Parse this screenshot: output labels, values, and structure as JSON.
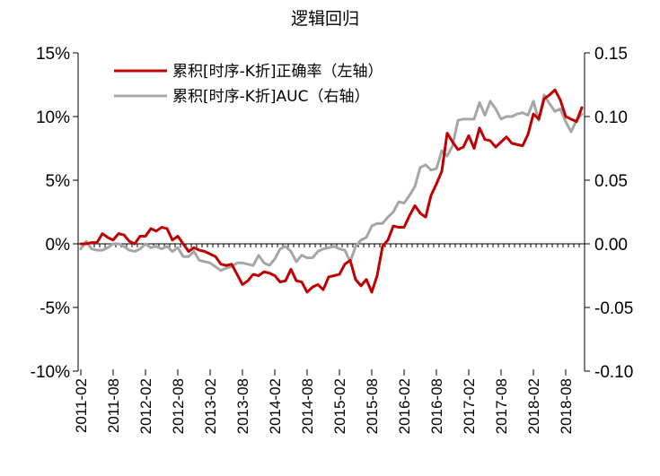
{
  "chart_data": {
    "type": "line",
    "title": "逻辑回归",
    "x_tick_labels": [
      "2011-02",
      "2011-08",
      "2012-02",
      "2012-08",
      "2013-02",
      "2013-08",
      "2014-02",
      "2014-08",
      "2015-02",
      "2015-08",
      "2016-02",
      "2016-08",
      "2017-02",
      "2017-08",
      "2018-02",
      "2018-08"
    ],
    "x_start": "2011-02",
    "x_end": "2018-09",
    "left_axis": {
      "ylim": [
        -10,
        15
      ],
      "ticks": [
        15,
        10,
        5,
        0,
        -5,
        -10
      ],
      "tick_labels": [
        "15%",
        "10%",
        "5%",
        "0%",
        "-5%",
        "-10%"
      ]
    },
    "right_axis": {
      "ylim": [
        -0.1,
        0.15
      ],
      "ticks": [
        0.15,
        0.1,
        0.05,
        0.0,
        -0.05,
        -0.1
      ],
      "tick_labels": [
        "0.15",
        "0.10",
        "0.05",
        "0.00",
        "-0.05",
        "-0.10"
      ]
    },
    "legend_position": "top-left",
    "series": [
      {
        "name": "累积[时序-K折]正确率（左轴）",
        "axis": "left",
        "color": "#c00000",
        "values": [
          0.0,
          0.0,
          0.1,
          0.1,
          0.8,
          0.5,
          0.3,
          0.8,
          0.7,
          0.2,
          0.0,
          0.6,
          0.6,
          1.2,
          1.0,
          1.3,
          1.2,
          0.3,
          0.6,
          0.0,
          -0.6,
          -0.3,
          -0.5,
          -0.6,
          -0.8,
          -1.0,
          -1.6,
          -1.7,
          -1.6,
          -2.4,
          -3.2,
          -2.9,
          -2.4,
          -2.5,
          -2.2,
          -2.3,
          -2.5,
          -3.0,
          -2.9,
          -2.0,
          -2.9,
          -3.0,
          -3.8,
          -3.4,
          -3.2,
          -3.6,
          -2.6,
          -2.5,
          -2.4,
          -1.6,
          -1.3,
          -2.8,
          -3.3,
          -2.8,
          -3.8,
          -2.5,
          -0.2,
          0.3,
          1.4,
          1.3,
          1.3,
          2.2,
          3.0,
          2.4,
          2.1,
          3.8,
          4.7,
          5.7,
          8.7,
          8.0,
          7.4,
          7.6,
          8.5,
          7.5,
          9.1,
          8.2,
          8.1,
          7.6,
          8.0,
          8.4,
          7.9,
          7.8,
          7.7,
          8.6,
          10.2,
          9.8,
          11.4,
          11.7,
          12.1,
          11.3,
          10.0,
          9.8,
          9.6,
          10.7
        ]
      },
      {
        "name": "累积[时序-K折]AUC（右轴）",
        "axis": "right",
        "color": "#a6a6a6",
        "values": [
          -0.004,
          0.002,
          -0.004,
          -0.005,
          -0.005,
          -0.003,
          0.0,
          0.0,
          -0.002,
          -0.005,
          -0.006,
          -0.004,
          0.0,
          -0.003,
          -0.002,
          -0.004,
          -0.002,
          -0.006,
          -0.003,
          -0.01,
          -0.01,
          -0.006,
          -0.013,
          -0.014,
          -0.015,
          -0.018,
          -0.021,
          -0.019,
          -0.018,
          -0.015,
          -0.015,
          -0.016,
          -0.017,
          -0.009,
          -0.015,
          -0.017,
          -0.012,
          -0.004,
          -0.002,
          -0.006,
          -0.014,
          -0.009,
          -0.011,
          -0.011,
          -0.006,
          -0.004,
          -0.003,
          -0.002,
          -0.004,
          -0.005,
          -0.014,
          -0.002,
          0.003,
          0.005,
          0.014,
          0.016,
          0.016,
          0.021,
          0.025,
          0.033,
          0.032,
          0.038,
          0.045,
          0.06,
          0.062,
          0.058,
          0.059,
          0.073,
          0.069,
          0.077,
          0.097,
          0.098,
          0.098,
          0.098,
          0.111,
          0.101,
          0.112,
          0.106,
          0.098,
          0.1,
          0.1,
          0.102,
          0.103,
          0.101,
          0.112,
          0.097,
          0.117,
          0.11,
          0.104,
          0.106,
          0.096,
          0.088,
          0.097,
          0.102
        ]
      }
    ]
  }
}
